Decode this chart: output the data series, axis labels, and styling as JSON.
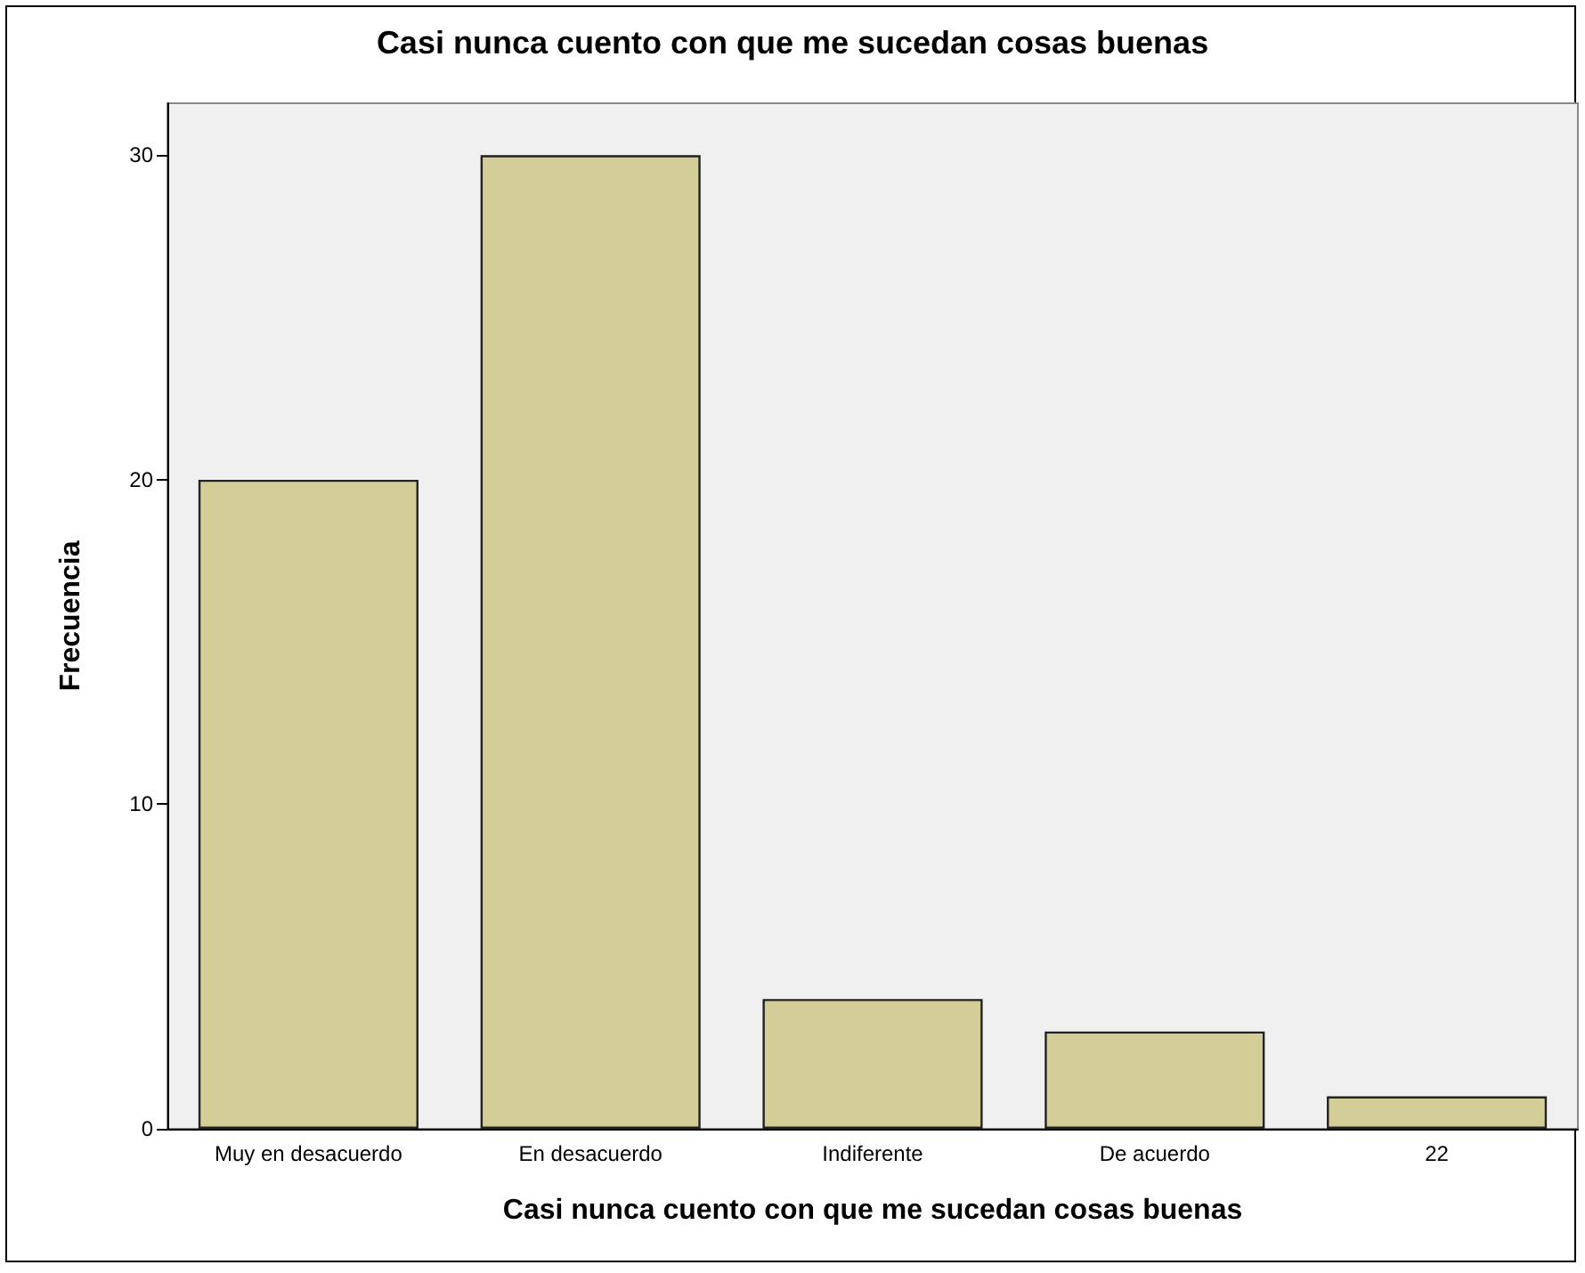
{
  "chart_data": {
    "type": "bar",
    "title": "Casi nunca cuento con que me sucedan cosas buenas",
    "xlabel": "Casi nunca cuento con que me sucedan cosas buenas",
    "ylabel": "Frecuencia",
    "categories": [
      "Muy en desacuerdo",
      "En desacuerdo",
      "Indiferente",
      "De acuerdo",
      "22"
    ],
    "values": [
      20,
      30,
      4,
      3,
      1
    ],
    "color": "#d3ce97",
    "ylim": [
      0,
      31.6
    ],
    "yticks": [
      0,
      10,
      20,
      30
    ],
    "grid": false
  }
}
